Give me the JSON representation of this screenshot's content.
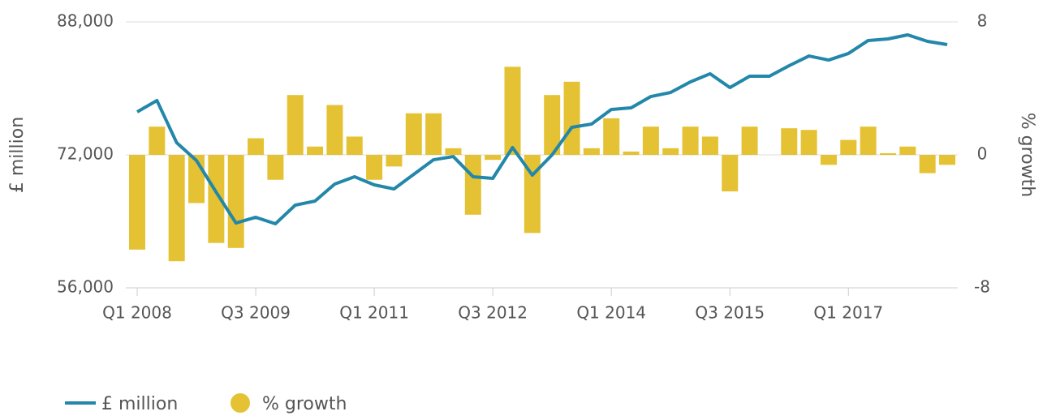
{
  "chart_data": {
    "type": "bar-line",
    "ylabel": "£ million",
    "y2label": "% growth",
    "categories": [
      "Q1 2008",
      null,
      null,
      null,
      null,
      null,
      "Q3 2009",
      null,
      null,
      null,
      null,
      null,
      "Q1 2011",
      null,
      null,
      null,
      null,
      null,
      "Q3 2012",
      null,
      null,
      null,
      null,
      null,
      "Q1 2014",
      null,
      null,
      null,
      null,
      null,
      "Q3 2015",
      null,
      null,
      null,
      null,
      null,
      "Q1 2017",
      null,
      null,
      null,
      null,
      null
    ],
    "series": [
      {
        "name": "£ million",
        "type": "line",
        "color": "#2387aa",
        "axis": "y",
        "values": [
          77170,
          78540,
          73460,
          71320,
          67510,
          63800,
          64490,
          63710,
          65950,
          66440,
          68490,
          69370,
          68390,
          67900,
          69660,
          71410,
          71800,
          69370,
          69170,
          72880,
          69560,
          72000,
          75320,
          75710,
          77460,
          77660,
          79020,
          79510,
          80780,
          81760,
          80100,
          81460,
          81460,
          82730,
          83900,
          83410,
          84200,
          85760,
          85950,
          86440,
          85660,
          85270
        ]
      },
      {
        "name": "% growth",
        "type": "bar",
        "color": "#e5c233",
        "axis": "y2",
        "values": [
          -5.7,
          1.7,
          -6.4,
          -2.9,
          -5.3,
          -5.6,
          1.0,
          -1.5,
          3.6,
          0.5,
          3.0,
          1.1,
          -1.5,
          -0.7,
          2.5,
          2.5,
          0.4,
          -3.6,
          -0.3,
          5.3,
          -4.7,
          3.6,
          4.4,
          0.4,
          2.2,
          0.2,
          1.7,
          0.4,
          1.7,
          1.1,
          -2.2,
          1.7,
          0,
          1.6,
          1.5,
          -0.6,
          0.9,
          1.7,
          0.1,
          0.5,
          -1.1,
          -0.6
        ]
      }
    ],
    "ylim": [
      56000,
      88000
    ],
    "yticks": [
      {
        "value": 56000,
        "label": "56,000"
      },
      {
        "value": 72000,
        "label": "72,000"
      },
      {
        "value": 88000,
        "label": "88,000"
      }
    ],
    "y2lim": [
      -8,
      8
    ],
    "y2ticks": [
      -8,
      0,
      8
    ],
    "grid": true,
    "legend": "bottom-left"
  }
}
